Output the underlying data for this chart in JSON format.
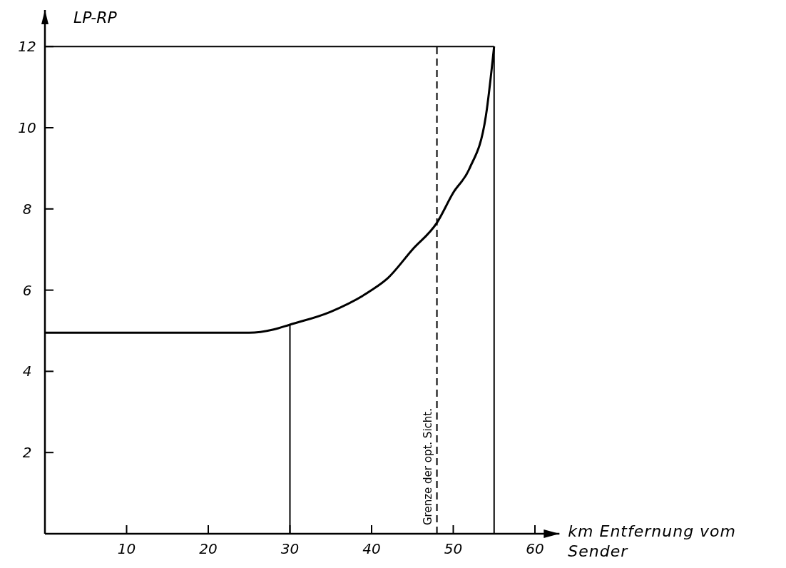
{
  "chart_data": {
    "type": "line",
    "xlabel": "km Entfernung vom Sender",
    "ylabel": "LP-RP",
    "xlim": [
      0,
      63
    ],
    "xticks": [
      10,
      20,
      30,
      40,
      50,
      60
    ],
    "ylim": [
      0,
      12.9
    ],
    "yticks": [
      2,
      4,
      6,
      8,
      10,
      12
    ],
    "series": [
      {
        "color": "#000000",
        "x": [
          0,
          25,
          28,
          30,
          35,
          40,
          42,
          45,
          48,
          50,
          52,
          54,
          55
        ],
        "values": [
          4.95,
          4.95,
          5.03,
          5.15,
          5.47,
          6.0,
          6.3,
          7.0,
          7.66,
          8.4,
          9.0,
          10.3,
          12
        ]
      },
      {
        "color": "#000000",
        "x": [
          0,
          55
        ],
        "values": [
          12,
          12
        ]
      }
    ],
    "ref_lines": [
      {
        "axis": "x",
        "value": 30,
        "line_style": "solid",
        "color": "#000000"
      },
      {
        "axis": "x",
        "value": 48,
        "label": "Grenze der opt. Sicht.",
        "line_style": "dashed",
        "color": "#000000"
      },
      {
        "axis": "x",
        "value": 55,
        "line_style": "solid",
        "color": "#000000"
      }
    ]
  }
}
